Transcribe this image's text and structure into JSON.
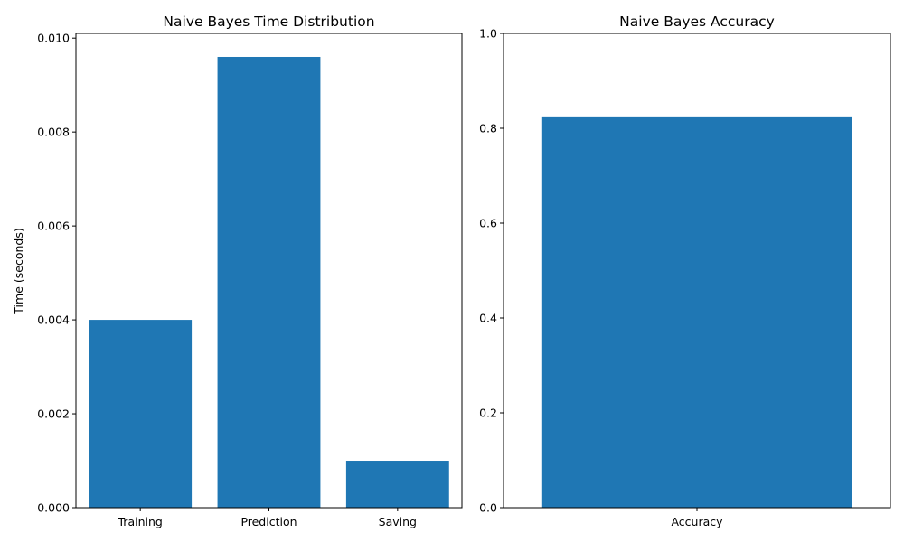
{
  "chart_data": [
    {
      "type": "bar",
      "title": "Naive Bayes Time Distribution",
      "xlabel": "",
      "ylabel": "Time (seconds)",
      "categories": [
        "Training",
        "Prediction",
        "Saving"
      ],
      "values": [
        0.004,
        0.0096,
        0.001
      ],
      "ylim": [
        0,
        0.0101
      ],
      "yticks": [
        0.0,
        0.002,
        0.004,
        0.006,
        0.008,
        0.01
      ],
      "ytick_labels": [
        "0.000",
        "0.002",
        "0.004",
        "0.006",
        "0.008",
        "0.010"
      ],
      "bar_color": "#1f77b4",
      "grid": false
    },
    {
      "type": "bar",
      "title": "Naive Bayes Accuracy",
      "xlabel": "",
      "ylabel": "",
      "categories": [
        "Accuracy"
      ],
      "values": [
        0.825
      ],
      "ylim": [
        0,
        1.0
      ],
      "yticks": [
        0.0,
        0.2,
        0.4,
        0.6,
        0.8,
        1.0
      ],
      "ytick_labels": [
        "0.0",
        "0.2",
        "0.4",
        "0.6",
        "0.8",
        "1.0"
      ],
      "bar_color": "#1f77b4",
      "grid": false
    }
  ]
}
